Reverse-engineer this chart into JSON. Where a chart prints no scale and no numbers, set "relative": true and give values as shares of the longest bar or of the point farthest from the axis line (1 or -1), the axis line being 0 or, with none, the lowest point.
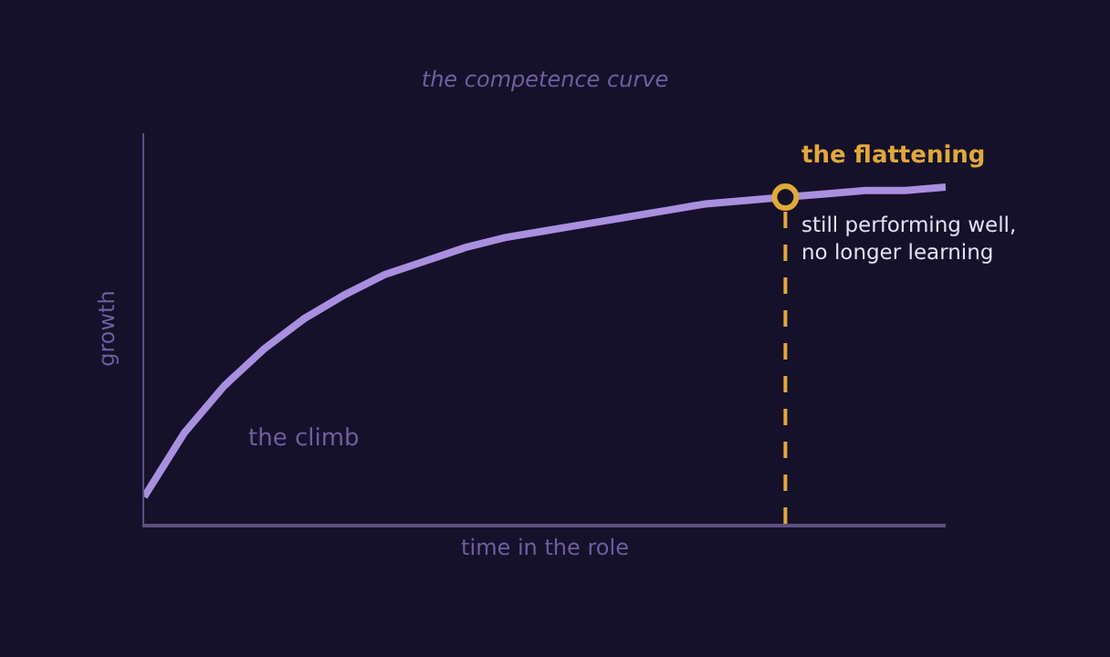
{
  "chart_data": {
    "type": "line",
    "relative": true,
    "title": "the competence curve",
    "xlabel": "time in the role",
    "ylabel": "growth",
    "categories": [
      null,
      null,
      null,
      null,
      null,
      null,
      null,
      null,
      null,
      null,
      null,
      null,
      null,
      null,
      null,
      null,
      null,
      null,
      null,
      null,
      null
    ],
    "series": [
      {
        "color": "#a98fe0",
        "values": [
          0.08,
          0.27,
          0.41,
          0.52,
          0.61,
          0.68,
          0.74,
          0.78,
          0.82,
          0.85,
          0.87,
          0.89,
          0.91,
          0.93,
          0.95,
          0.96,
          0.97,
          0.98,
          0.99,
          0.99,
          1.0
        ]
      }
    ],
    "marker": "none",
    "annotations": [
      "the flattening",
      "still performing well,\nno longer learning",
      "the climb"
    ],
    "tick_labels": false
  }
}
